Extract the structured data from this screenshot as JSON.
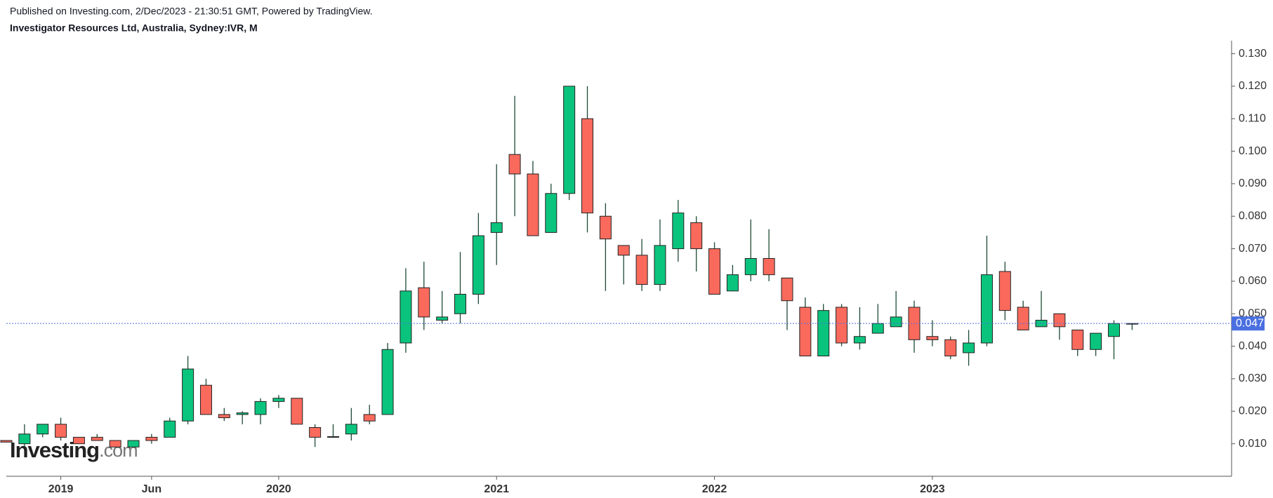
{
  "header": {
    "published": "Published on Investing.com, 2/Dec/2023 - 21:30:51 GMT, Powered by TradingView.",
    "instrument": "Investigator Resources Ltd, Australia, Sydney:IVR, M"
  },
  "watermark": {
    "brand": "Investing",
    "suffix": ".com"
  },
  "chart_data": {
    "type": "candlestick",
    "categories": [
      null,
      null,
      null,
      "2019",
      null,
      null,
      null,
      null,
      "Jun",
      null,
      null,
      null,
      null,
      null,
      null,
      "2020",
      null,
      null,
      null,
      null,
      null,
      null,
      null,
      null,
      null,
      null,
      null,
      "2021",
      null,
      null,
      null,
      null,
      null,
      null,
      null,
      null,
      null,
      null,
      null,
      "2022",
      null,
      null,
      null,
      null,
      null,
      null,
      null,
      null,
      null,
      null,
      null,
      "2023",
      null,
      null,
      null,
      null,
      null,
      null,
      null,
      null,
      null,
      null,
      null
    ],
    "open": [
      0.011,
      0.01,
      0.013,
      0.016,
      0.012,
      0.012,
      0.011,
      0.009,
      0.012,
      0.012,
      0.017,
      0.028,
      0.019,
      0.019,
      0.019,
      0.023,
      0.024,
      0.015,
      0.012,
      0.013,
      0.019,
      0.019,
      0.041,
      0.058,
      0.048,
      0.05,
      0.056,
      0.075,
      0.099,
      0.093,
      0.075,
      0.087,
      0.11,
      0.08,
      0.071,
      0.068,
      0.059,
      0.07,
      0.078,
      0.07,
      0.057,
      0.062,
      0.067,
      0.061,
      0.052,
      0.037,
      0.052,
      0.041,
      0.044,
      0.046,
      0.052,
      0.043,
      0.042,
      0.038,
      0.041,
      0.063,
      0.052,
      0.046,
      0.05,
      0.045,
      0.039,
      0.043,
      0.047
    ],
    "high": [
      0.011,
      0.016,
      0.016,
      0.018,
      0.012,
      0.013,
      0.011,
      0.011,
      0.013,
      0.018,
      0.037,
      0.03,
      0.021,
      0.02,
      0.024,
      0.025,
      0.024,
      0.016,
      0.016,
      0.021,
      0.022,
      0.041,
      0.064,
      0.066,
      0.057,
      0.069,
      0.081,
      0.096,
      0.117,
      0.097,
      0.09,
      0.12,
      0.12,
      0.084,
      0.071,
      0.073,
      0.079,
      0.085,
      0.08,
      0.072,
      0.065,
      0.079,
      0.076,
      0.061,
      0.055,
      0.053,
      0.053,
      0.052,
      0.053,
      0.057,
      0.054,
      0.048,
      0.043,
      0.045,
      0.074,
      0.066,
      0.054,
      0.057,
      0.05,
      0.045,
      0.044,
      0.048,
      0.047
    ],
    "low": [
      0.0105,
      0.009,
      0.012,
      0.011,
      0.01,
      0.011,
      0.009,
      0.009,
      0.01,
      0.012,
      0.016,
      0.019,
      0.017,
      0.016,
      0.016,
      0.021,
      0.016,
      0.009,
      0.012,
      0.011,
      0.016,
      0.019,
      0.038,
      0.045,
      0.047,
      0.047,
      0.053,
      0.065,
      0.08,
      0.074,
      0.075,
      0.085,
      0.075,
      0.057,
      0.059,
      0.057,
      0.057,
      0.066,
      0.063,
      0.056,
      0.057,
      0.06,
      0.06,
      0.045,
      0.037,
      0.037,
      0.04,
      0.039,
      0.044,
      0.046,
      0.038,
      0.04,
      0.036,
      0.034,
      0.04,
      0.048,
      0.045,
      0.046,
      0.042,
      0.037,
      0.037,
      0.036,
      0.045
    ],
    "close": [
      0.0105,
      0.013,
      0.016,
      0.012,
      0.01,
      0.011,
      0.009,
      0.011,
      0.011,
      0.017,
      0.033,
      0.019,
      0.018,
      0.0195,
      0.023,
      0.024,
      0.016,
      0.012,
      0.0122,
      0.016,
      0.017,
      0.039,
      0.057,
      0.049,
      0.049,
      0.056,
      0.074,
      0.078,
      0.093,
      0.074,
      0.087,
      0.12,
      0.081,
      0.073,
      0.068,
      0.059,
      0.071,
      0.081,
      0.07,
      0.056,
      0.062,
      0.067,
      0.062,
      0.054,
      0.037,
      0.051,
      0.041,
      0.043,
      0.047,
      0.049,
      0.042,
      0.042,
      0.037,
      0.041,
      0.062,
      0.051,
      0.045,
      0.048,
      0.046,
      0.039,
      0.044,
      0.047,
      0.047
    ],
    "up_color": "#0ac47d",
    "down_color": "#f96a5d",
    "wick_color": "#1e4a35",
    "ylim": [
      0,
      0.134
    ],
    "yticks": [
      {
        "value": 0.01,
        "label": "0.010"
      },
      {
        "value": 0.02,
        "label": "0.020"
      },
      {
        "value": 0.03,
        "label": "0.030"
      },
      {
        "value": 0.04,
        "label": "0.040"
      },
      {
        "value": 0.05,
        "label": "0.050"
      },
      {
        "value": 0.06,
        "label": "0.060"
      },
      {
        "value": 0.07,
        "label": "0.070"
      },
      {
        "value": 0.08,
        "label": "0.080"
      },
      {
        "value": 0.09,
        "label": "0.090"
      },
      {
        "value": 0.1,
        "label": "0.100"
      },
      {
        "value": 0.11,
        "label": "0.110"
      },
      {
        "value": 0.12,
        "label": "0.120"
      },
      {
        "value": 0.13,
        "label": "0.130"
      }
    ],
    "last_price": 0.047,
    "last_price_color": "#4a6fe0",
    "grid": false
  }
}
